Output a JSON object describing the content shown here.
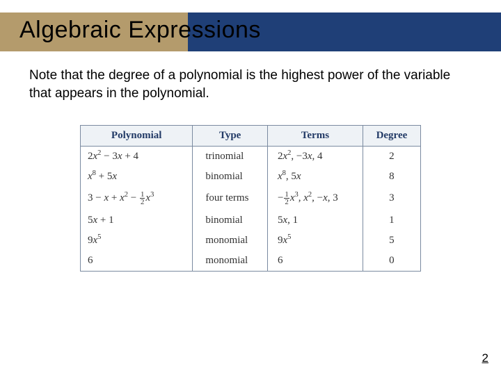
{
  "title": "Algebraic Expressions",
  "body": "Note that the degree of a polynomial is the highest power of the variable that appears in the polynomial.",
  "table": {
    "headers": [
      "Polynomial",
      "Type",
      "Terms",
      "Degree"
    ],
    "col_widths": [
      "33%",
      "22%",
      "28%",
      "17%"
    ],
    "header_bg": "#eef2f6",
    "header_color": "#223a66",
    "border_color": "#7a8aa0",
    "rows": [
      {
        "poly_html": "2<i>x</i><sup>2</sup> − 3<i>x</i> + 4",
        "type": "trinomial",
        "terms_html": "2<i>x</i><sup>2</sup>, −3<i>x</i>, 4",
        "degree": "2"
      },
      {
        "poly_html": "<i>x</i><sup>8</sup> + 5<i>x</i>",
        "type": "binomial",
        "terms_html": "<i>x</i><sup>8</sup>, 5<i>x</i>",
        "degree": "8"
      },
      {
        "poly_html": "3 − <i>x</i> + <i>x</i><sup>2</sup> − <span class=\"frac\"><span class=\"n\">1</span><span class=\"d\">2</span></span><i>x</i><sup>3</sup>",
        "type": "four terms",
        "terms_html": "−<span class=\"frac\"><span class=\"n\">1</span><span class=\"d\">2</span></span><i>x</i><sup>3</sup>, <i>x</i><sup>2</sup>, −<i>x</i>, 3",
        "degree": "3"
      },
      {
        "poly_html": "5<i>x</i> + 1",
        "type": "binomial",
        "terms_html": "5<i>x</i>, 1",
        "degree": "1"
      },
      {
        "poly_html": "9<i>x</i><sup>5</sup>",
        "type": "monomial",
        "terms_html": "9<i>x</i><sup>5</sup>",
        "degree": "5"
      },
      {
        "poly_html": "6",
        "type": "monomial",
        "terms_html": "6",
        "degree": "0"
      }
    ]
  },
  "page_number": "2",
  "colors": {
    "title_bar": "#1f3f77",
    "title_accent": "#b49b6c",
    "background": "#ffffff"
  }
}
